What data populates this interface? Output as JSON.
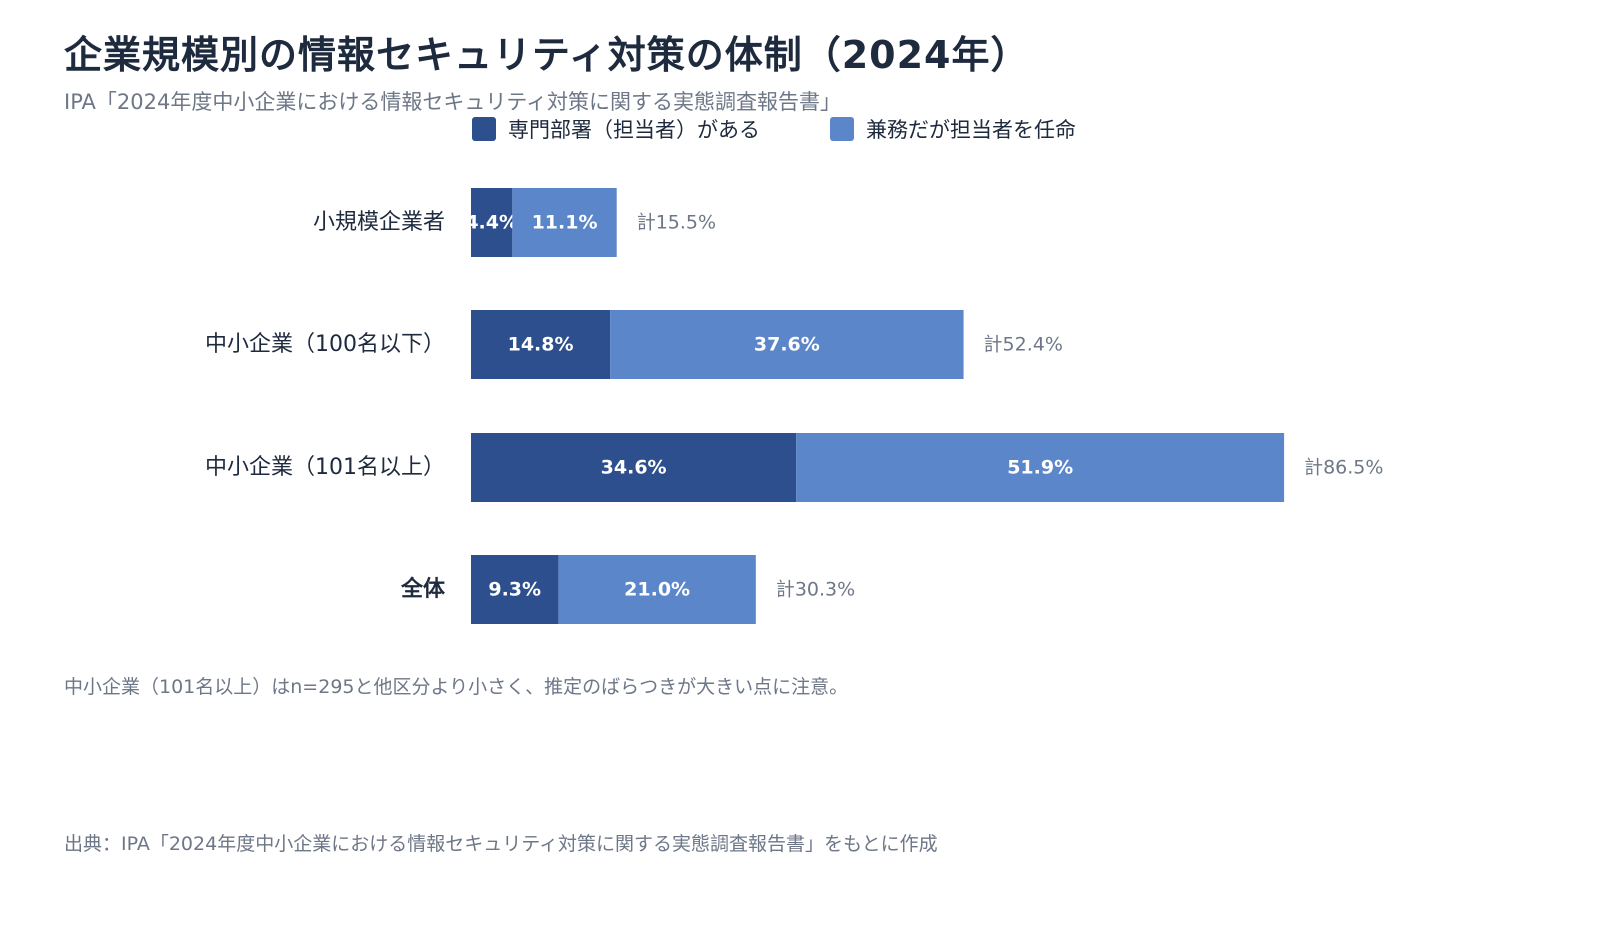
{
  "title": "企業規模別の情報セキュリティ対策の体制（2024年）",
  "subtitle": "IPA「2024年度中小企業における情報セキュリティ対策に関する実態調査報告書」",
  "note": "中小企業（101名以上）はn=295と他区分より小さく、推定のばらつきが大きい点に注意。",
  "source": "出典：IPA「2024年度中小企業における情報セキュリティ対策に関する実態調査報告書」をもとに作成",
  "chart_data": {
    "type": "bar",
    "orientation": "horizontal",
    "stacked": true,
    "categories": [
      "小規模企業者",
      "中小企業（100名以下）",
      "中小企業（101名以上）",
      "全体"
    ],
    "emphasized_category": "全体",
    "series": [
      {
        "name": "専門部署（担当者）がある",
        "color": "#2e4f8e",
        "values": [
          4.4,
          14.8,
          34.6,
          9.3
        ],
        "labels": [
          "4.4%",
          "14.8%",
          "34.6%",
          "9.3%"
        ]
      },
      {
        "name": "兼務だが担当者を任命",
        "color": "#5b86c9",
        "values": [
          11.1,
          37.6,
          51.9,
          21.0
        ],
        "labels": [
          "11.1%",
          "37.6%",
          "51.9%",
          "21.0%"
        ]
      }
    ],
    "totals": [
      "計15.5%",
      "計52.4%",
      "計86.5%",
      "計30.3%"
    ],
    "legend_position": "top",
    "grid": false
  }
}
